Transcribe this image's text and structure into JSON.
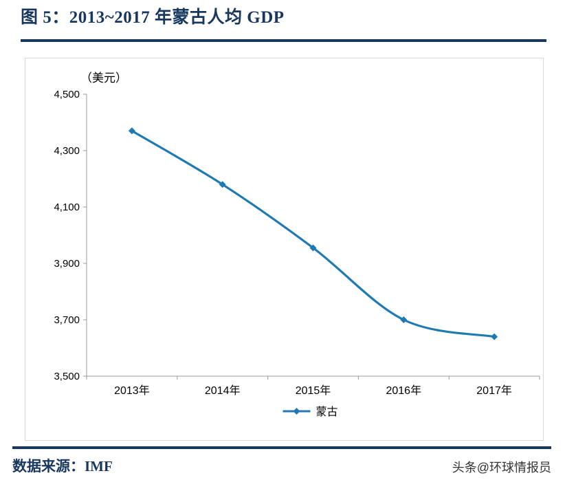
{
  "header": {
    "title": "图 5：2013~2017 年蒙古人均 GDP"
  },
  "footer": {
    "source_label": "数据来源：IMF",
    "watermark": "头条@环球情报员"
  },
  "colors": {
    "accent": "#17375E",
    "series_line": "#1F7AB4",
    "axis": "#9a9a9a",
    "text": "#000000"
  },
  "chart_data": {
    "type": "line",
    "title": "2013~2017 年蒙古人均 GDP",
    "unit_label": "（美元）",
    "categories": [
      "2013年",
      "2014年",
      "2015年",
      "2016年",
      "2017年"
    ],
    "series": [
      {
        "name": "蒙古",
        "values": [
          4370,
          4180,
          3955,
          3700,
          3640
        ],
        "color": "#1F7AB4",
        "marker": "diamond",
        "smooth": true
      }
    ],
    "ylim": [
      3500,
      4500
    ],
    "ytick_step": 200,
    "ytick_labels": [
      "3,500",
      "3,700",
      "3,900",
      "4,100",
      "4,300",
      "4,500"
    ],
    "grid": false,
    "legend_position": "bottom"
  }
}
